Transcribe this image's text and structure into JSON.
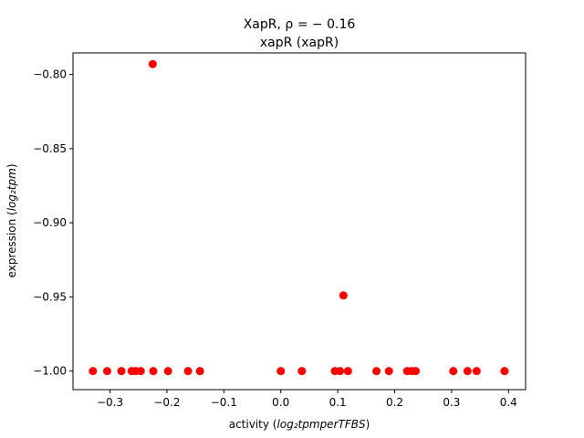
{
  "chart_data": {
    "type": "scatter",
    "title_line1": "XapR, ρ = − 0.16",
    "title_line2": "xapR (xapR)",
    "xlabel_prefix": "activity (",
    "xlabel_math": "log₂tpmperTFBS",
    "xlabel_suffix": ")",
    "ylabel_prefix": "expression (",
    "ylabel_math": "log₂tpm",
    "ylabel_suffix": ")",
    "xlim": [
      -0.365,
      0.43
    ],
    "ylim": [
      -1.0125,
      -0.7855
    ],
    "xticks": [
      -0.3,
      -0.2,
      -0.1,
      0.0,
      0.1,
      0.2,
      0.3,
      0.4
    ],
    "xtick_labels": [
      "−0.3",
      "−0.2",
      "−0.1",
      "0.0",
      "0.1",
      "0.2",
      "0.3",
      "0.4"
    ],
    "yticks": [
      -1.0,
      -0.95,
      -0.9,
      -0.85,
      -0.8
    ],
    "ytick_labels": [
      "−1.00",
      "−0.95",
      "−0.90",
      "−0.85",
      "−0.80"
    ],
    "grid": false,
    "marker_color": "#ff0000",
    "points": [
      {
        "x": -0.33,
        "y": -1.0
      },
      {
        "x": -0.305,
        "y": -1.0
      },
      {
        "x": -0.28,
        "y": -1.0
      },
      {
        "x": -0.262,
        "y": -1.0
      },
      {
        "x": -0.255,
        "y": -1.0
      },
      {
        "x": -0.246,
        "y": -1.0
      },
      {
        "x": -0.224,
        "y": -1.0
      },
      {
        "x": -0.225,
        "y": -0.793
      },
      {
        "x": -0.198,
        "y": -1.0
      },
      {
        "x": -0.163,
        "y": -1.0
      },
      {
        "x": -0.142,
        "y": -1.0
      },
      {
        "x": 0.0,
        "y": -1.0
      },
      {
        "x": 0.037,
        "y": -1.0
      },
      {
        "x": 0.095,
        "y": -1.0
      },
      {
        "x": 0.104,
        "y": -1.0
      },
      {
        "x": 0.11,
        "y": -0.949
      },
      {
        "x": 0.118,
        "y": -1.0
      },
      {
        "x": 0.168,
        "y": -1.0
      },
      {
        "x": 0.19,
        "y": -1.0
      },
      {
        "x": 0.222,
        "y": -1.0
      },
      {
        "x": 0.23,
        "y": -1.0
      },
      {
        "x": 0.237,
        "y": -1.0
      },
      {
        "x": 0.303,
        "y": -1.0
      },
      {
        "x": 0.328,
        "y": -1.0
      },
      {
        "x": 0.344,
        "y": -1.0
      },
      {
        "x": 0.393,
        "y": -1.0
      }
    ]
  }
}
